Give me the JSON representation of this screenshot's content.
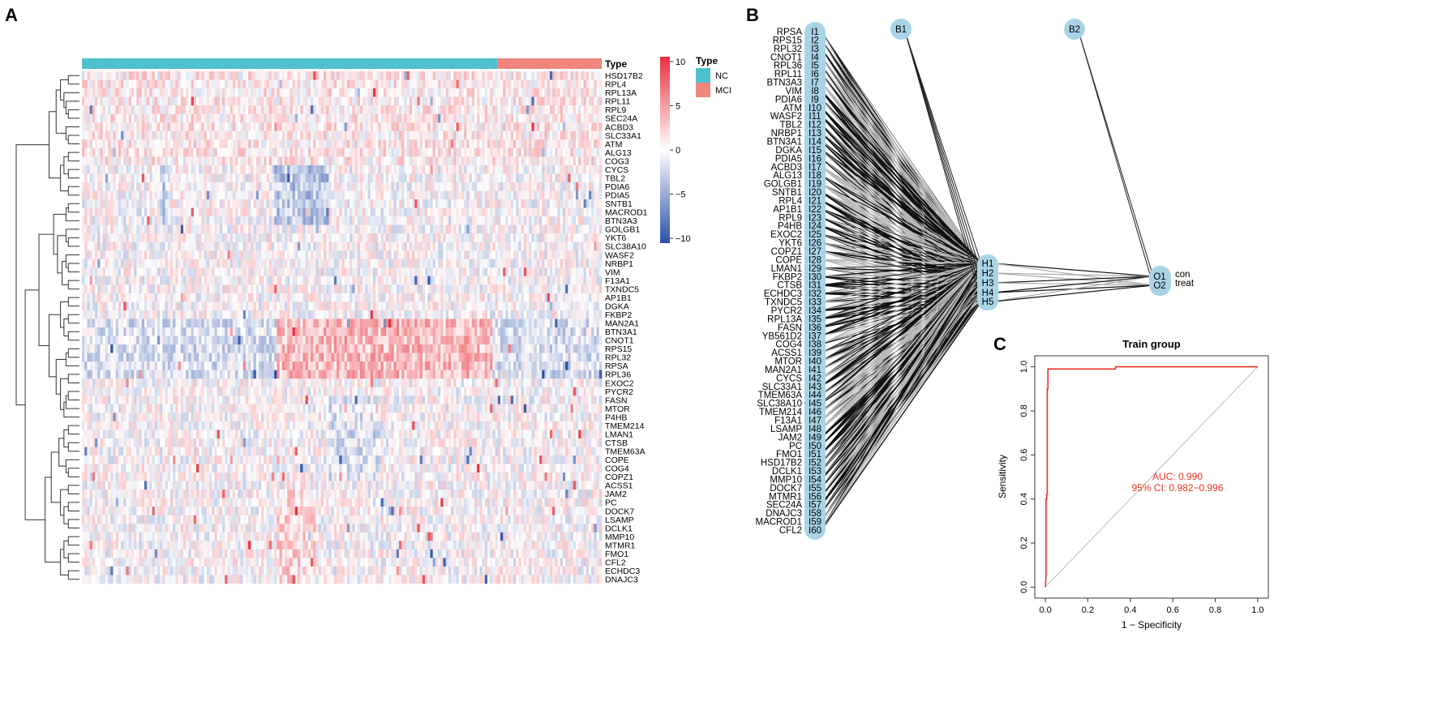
{
  "panel_labels": {
    "a": "A",
    "b": "B",
    "c": "C"
  },
  "colors": {
    "nc": "#4fc1cc",
    "mci": "#f0867e",
    "heat_low": "#2b50a8",
    "heat_mid": "#ffffff",
    "heat_high": "#e8303a",
    "node": "#a9d4e6",
    "roc": "#e8321f",
    "diag": "#bdbdbd",
    "auc_text": "#e8321f"
  },
  "heatmap": {
    "annotation_title": "Type",
    "legend_title": "Type",
    "legend_items": [
      {
        "label": "NC"
      },
      {
        "label": "MCI"
      }
    ],
    "nc_fraction": 0.79,
    "colorbar_ticks": [
      "10",
      "5",
      "0",
      "−5",
      "−10"
    ],
    "colorbar_values": [
      10,
      5,
      0,
      -5,
      -10
    ],
    "genes": [
      "HSD17B2",
      "RPL4",
      "RPL13A",
      "RPL11",
      "RPL9",
      "SEC24A",
      "ACBD3",
      "SLC33A1",
      "ATM",
      "ALG13",
      "COG3",
      "CYCS",
      "TBL2",
      "PDIA6",
      "PDIA5",
      "SNTB1",
      "MACROD1",
      "BTN3A3",
      "GOLGB1",
      "YKT6",
      "SLC38A10",
      "WASF2",
      "NRBP1",
      "VIM",
      "F13A1",
      "TXNDC5",
      "AP1B1",
      "DGKA",
      "FKBP2",
      "MAN2A1",
      "BTN3A1",
      "CNOT1",
      "RPS15",
      "RPL32",
      "RPSA",
      "RPL36",
      "EXOC2",
      "PYCR2",
      "FASN",
      "MTOR",
      "P4HB",
      "TMEM214",
      "LMAN1",
      "CTSB",
      "TMEM63A",
      "COPE",
      "COG4",
      "COPZ1",
      "ACSS1",
      "JAM2",
      "PC",
      "DOCK7",
      "LSAMP",
      "DCLK1",
      "MMP10",
      "MTMR1",
      "FMO1",
      "CFL2",
      "ECHDC3",
      "DNAJC3"
    ]
  },
  "network": {
    "inputs": [
      "RPSA",
      "RPS15",
      "RPL32",
      "CNOT1",
      "RPL36",
      "RPL11",
      "BTN3A3",
      "VIM",
      "PDIA6",
      "ATM",
      "WASF2",
      "TBL2",
      "NRBP1",
      "BTN3A1",
      "DGKA",
      "PDIA5",
      "ACBD3",
      "ALG13",
      "GOLGB1",
      "SNTB1",
      "RPL4",
      "AP1B1",
      "RPL9",
      "P4HB",
      "EXOC2",
      "YKT6",
      "COPZ1",
      "COPE",
      "LMAN1",
      "FKBP2",
      "CTSB",
      "ECHDC3",
      "TXNDC5",
      "PYCR2",
      "RPL13A",
      "FASN",
      "YB561D2",
      "COG4",
      "ACSS1",
      "MTOR",
      "MAN2A1",
      "CYCS",
      "SLC33A1",
      "TMEM63A",
      "SLC38A10",
      "TMEM214",
      "F13A1",
      "LSAMP",
      "JAM2",
      "PC",
      "FMO1",
      "HSD17B2",
      "DCLK1",
      "MMP10",
      "DOCK7",
      "MTMR1",
      "SEC24A",
      "DNAJC3",
      "MACROD1",
      "CFL2"
    ],
    "input_ids": [
      "I1",
      "I2",
      "I3",
      "I4",
      "I5",
      "I6",
      "I7",
      "I8",
      "I9",
      "I10",
      "I11",
      "I12",
      "I13",
      "I14",
      "I15",
      "I16",
      "I17",
      "I18",
      "I19",
      "I20",
      "I21",
      "I22",
      "I23",
      "I24",
      "I25",
      "I26",
      "I27",
      "I28",
      "I29",
      "I30",
      "I31",
      "I32",
      "I33",
      "I34",
      "I35",
      "I36",
      "I37",
      "I38",
      "I39",
      "I40",
      "I41",
      "I42",
      "I43",
      "I44",
      "I45",
      "I46",
      "I47",
      "I48",
      "I49",
      "I50",
      "I51",
      "I52",
      "I53",
      "I54",
      "I55",
      "I56",
      "I57",
      "I58",
      "I59",
      "I60"
    ],
    "bias_nodes": [
      "B1",
      "B2"
    ],
    "hidden_nodes": [
      "H1",
      "H2",
      "H3",
      "H4",
      "H5"
    ],
    "output_nodes": [
      "O1",
      "O2"
    ],
    "output_labels": [
      "con",
      "treat"
    ]
  },
  "chart_data": {
    "type": "line",
    "title": "Train group",
    "xlabel": "1 − Specificity",
    "ylabel": "Sensitivity",
    "xlim": [
      -0.05,
      1.05
    ],
    "ylim": [
      -0.05,
      1.05
    ],
    "xticks": [
      "0.0",
      "0.2",
      "0.4",
      "0.6",
      "0.8",
      "1.0"
    ],
    "xtick_values": [
      0,
      0.2,
      0.4,
      0.6,
      0.8,
      1.0
    ],
    "yticks": [
      "0.0",
      "0.2",
      "0.4",
      "0.6",
      "0.8",
      "1.0"
    ],
    "ytick_values": [
      0,
      0.2,
      0.4,
      0.6,
      0.8,
      1.0
    ],
    "series": [
      {
        "name": "ROC",
        "x": [
          0,
          0.003,
          0.003,
          0.006,
          0.006,
          0.009,
          0.009,
          0.012,
          0.012,
          0.33,
          0.33,
          1.0
        ],
        "y": [
          0,
          0.05,
          0.4,
          0.4,
          0.42,
          0.42,
          0.9,
          0.9,
          0.99,
          0.99,
          1.0,
          1.0
        ]
      },
      {
        "name": "reference",
        "x": [
          0,
          1
        ],
        "y": [
          0,
          1
        ]
      }
    ],
    "annotations": [
      "AUC: 0.990",
      "95% CI: 0.982−0.996"
    ],
    "auc": 0.99,
    "ci": [
      0.982,
      0.996
    ]
  }
}
